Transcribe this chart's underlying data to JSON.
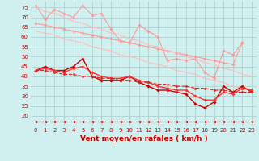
{
  "xlabel": "Vent moyen/en rafales ( km/h )",
  "x": [
    0,
    1,
    2,
    3,
    4,
    5,
    6,
    7,
    8,
    9,
    10,
    11,
    12,
    13,
    14,
    15,
    16,
    17,
    18,
    19,
    20,
    21,
    22,
    23
  ],
  "series": [
    {
      "name": "line1_jagged_light",
      "color": "#ff9999",
      "lw": 0.8,
      "linestyle": "-",
      "marker": "D",
      "ms": 1.8,
      "data": [
        76,
        69,
        74,
        72,
        70,
        76,
        71,
        72,
        64,
        58,
        57,
        66,
        63,
        60,
        48,
        49,
        48,
        49,
        42,
        39,
        53,
        51,
        57,
        null
      ]
    },
    {
      "name": "line2_diagonal_light",
      "color": "#ff9999",
      "lw": 0.8,
      "linestyle": "-",
      "marker": "D",
      "ms": 1.8,
      "data": [
        67,
        66,
        65,
        64,
        63,
        62,
        61,
        60,
        59,
        58,
        57,
        56,
        55,
        54,
        53,
        52,
        51,
        50,
        49,
        48,
        47,
        46,
        57,
        null
      ]
    },
    {
      "name": "line3_upper_regression",
      "color": "#ffbbbb",
      "lw": 0.8,
      "linestyle": "-",
      "marker": null,
      "ms": 0,
      "data": [
        75,
        73,
        72,
        70,
        68,
        67,
        65,
        64,
        62,
        61,
        59,
        58,
        56,
        55,
        53,
        52,
        50,
        49,
        47,
        46,
        44,
        43,
        41,
        40
      ]
    },
    {
      "name": "line4_lower_regression",
      "color": "#ffbbbb",
      "lw": 0.8,
      "linestyle": "-",
      "marker": null,
      "ms": 0,
      "data": [
        63,
        62,
        61,
        59,
        58,
        57,
        55,
        54,
        53,
        51,
        50,
        49,
        47,
        46,
        45,
        43,
        42,
        41,
        39,
        38,
        37,
        35,
        34,
        33
      ]
    },
    {
      "name": "line5_flat_dashed",
      "color": "#cc0000",
      "lw": 0.8,
      "linestyle": "--",
      "marker": "<",
      "ms": 2.0,
      "data": [
        17,
        17,
        17,
        17,
        17,
        17,
        17,
        17,
        17,
        17,
        17,
        17,
        17,
        17,
        17,
        17,
        17,
        17,
        17,
        17,
        17,
        17,
        17,
        17
      ]
    },
    {
      "name": "line6_dark_jagged",
      "color": "#cc0000",
      "lw": 1.0,
      "linestyle": "-",
      "marker": "D",
      "ms": 1.8,
      "data": [
        43,
        45,
        43,
        43,
        45,
        49,
        40,
        38,
        38,
        38,
        40,
        37,
        35,
        33,
        33,
        32,
        31,
        26,
        24,
        27,
        35,
        32,
        35,
        32
      ]
    },
    {
      "name": "line7_dark_medium",
      "color": "#ff3333",
      "lw": 1.0,
      "linestyle": "-",
      "marker": "D",
      "ms": 1.8,
      "data": [
        43,
        44,
        43,
        42,
        44,
        45,
        42,
        40,
        39,
        39,
        40,
        38,
        37,
        35,
        34,
        33,
        33,
        30,
        28,
        28,
        32,
        31,
        34,
        33
      ]
    },
    {
      "name": "line8_dark_regression_dashed",
      "color": "#dd2222",
      "lw": 0.8,
      "linestyle": "--",
      "marker": "D",
      "ms": 1.5,
      "data": [
        43,
        43,
        42,
        41,
        41,
        40,
        40,
        39,
        39,
        38,
        38,
        37,
        37,
        36,
        36,
        35,
        35,
        34,
        34,
        33,
        33,
        32,
        32,
        32
      ]
    }
  ],
  "ylim": [
    15,
    78
  ],
  "xlim": [
    -0.5,
    23.5
  ],
  "yticks": [
    20,
    25,
    30,
    35,
    40,
    45,
    50,
    55,
    60,
    65,
    70,
    75
  ],
  "xticks": [
    0,
    1,
    2,
    3,
    4,
    5,
    6,
    7,
    8,
    9,
    10,
    11,
    12,
    13,
    14,
    15,
    16,
    17,
    18,
    19,
    20,
    21,
    22,
    23
  ],
  "bg_color": "#d0f0f0",
  "grid_color": "#aacccc",
  "xlabel_color": "#cc0000",
  "tick_color": "#cc0000",
  "axis_label_fontsize": 6.5,
  "tick_fontsize": 5.0
}
